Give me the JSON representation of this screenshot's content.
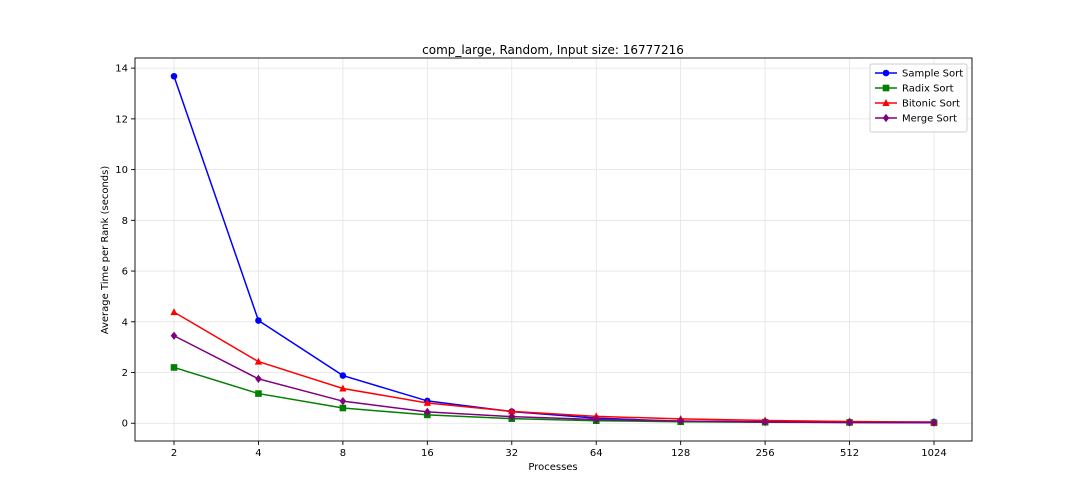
{
  "chart_data": {
    "type": "line",
    "title": "comp_large, Random, Input size: 16777216",
    "xlabel": "Processes",
    "ylabel": "Average Time per Rank (seconds)",
    "x_scale": "log2",
    "categories": [
      "2",
      "4",
      "8",
      "16",
      "32",
      "64",
      "128",
      "256",
      "512",
      "1024"
    ],
    "ylim": [
      -0.7,
      14.4
    ],
    "yticks": [
      0,
      2,
      4,
      6,
      8,
      10,
      12,
      14
    ],
    "grid": true,
    "legend_position": "top-right",
    "series": [
      {
        "name": "Sample Sort",
        "color": "#0000ff",
        "marker": "circle",
        "values": [
          13.68,
          4.05,
          1.88,
          0.88,
          0.46,
          0.2,
          0.08,
          0.06,
          0.05,
          0.05
        ]
      },
      {
        "name": "Radix Sort",
        "color": "#008000",
        "marker": "square",
        "values": [
          2.2,
          1.17,
          0.6,
          0.33,
          0.18,
          0.1,
          0.06,
          0.04,
          0.03,
          0.02
        ]
      },
      {
        "name": "Bitonic Sort",
        "color": "#ff0000",
        "marker": "triangle",
        "values": [
          4.38,
          2.43,
          1.37,
          0.8,
          0.47,
          0.27,
          0.17,
          0.11,
          0.07,
          0.04
        ]
      },
      {
        "name": "Merge Sort",
        "color": "#800080",
        "marker": "diamond",
        "values": [
          3.45,
          1.75,
          0.87,
          0.45,
          0.26,
          0.15,
          0.09,
          0.05,
          0.03,
          0.02
        ]
      }
    ]
  }
}
